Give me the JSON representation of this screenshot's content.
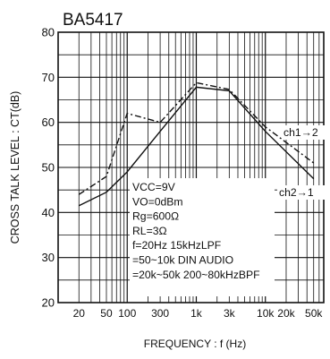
{
  "chart_data": {
    "type": "line",
    "title": "BA5417",
    "xlabel": "FREQUENCY : f (Hz)",
    "ylabel": "CROSS TALK LEVEL : CT(dB)",
    "xscale": "log",
    "xlim": [
      10,
      70000
    ],
    "ylim": [
      20,
      80
    ],
    "grid": true,
    "x_ticks": [
      {
        "value": 20,
        "label": "20"
      },
      {
        "value": 50,
        "label": "50"
      },
      {
        "value": 100,
        "label": "100"
      },
      {
        "value": 300,
        "label": "300"
      },
      {
        "value": 1000,
        "label": "1k"
      },
      {
        "value": 3000,
        "label": "3k"
      },
      {
        "value": 10000,
        "label": "10k"
      },
      {
        "value": 20000,
        "label": "20k"
      },
      {
        "value": 50000,
        "label": "50k"
      }
    ],
    "y_ticks": [
      {
        "value": 20,
        "label": "20"
      },
      {
        "value": 30,
        "label": "30"
      },
      {
        "value": 40,
        "label": "40"
      },
      {
        "value": 50,
        "label": "50"
      },
      {
        "value": 60,
        "label": "60"
      },
      {
        "value": 70,
        "label": "70"
      },
      {
        "value": 80,
        "label": "80"
      }
    ],
    "series": [
      {
        "name": "ch1→2",
        "style": "dash-dot",
        "color": "#111111",
        "points": [
          [
            20,
            44
          ],
          [
            50,
            48
          ],
          [
            100,
            62
          ],
          [
            300,
            60
          ],
          [
            1000,
            68.8
          ],
          [
            3000,
            67.3
          ],
          [
            10000,
            59
          ],
          [
            50000,
            51
          ]
        ]
      },
      {
        "name": "ch2→1",
        "style": "solid",
        "color": "#111111",
        "points": [
          [
            20,
            41.5
          ],
          [
            50,
            44.5
          ],
          [
            100,
            49
          ],
          [
            300,
            58
          ],
          [
            1000,
            67.8
          ],
          [
            3000,
            67
          ],
          [
            10000,
            58
          ],
          [
            50000,
            47.5
          ]
        ]
      }
    ],
    "annotations": [
      "VCC=9V",
      "VO=0dBm",
      "Rg=600Ω",
      "RL=3Ω",
      "f=20Hz   15kHzLPF",
      "=50~10k   DIN AUDIO",
      "=20k~50k   200~80kHzBPF"
    ]
  }
}
